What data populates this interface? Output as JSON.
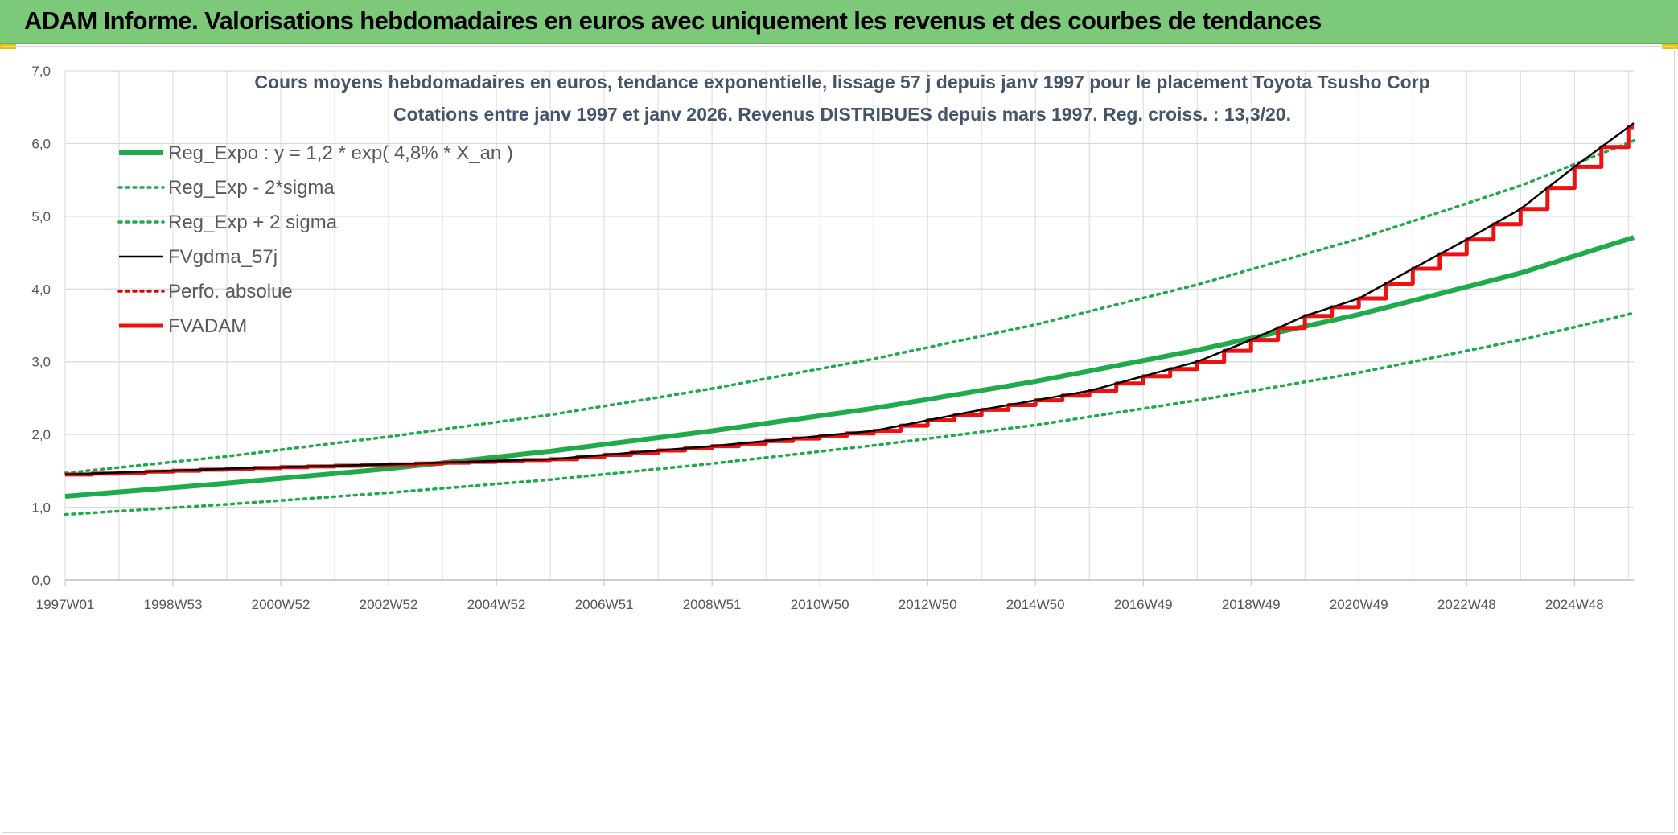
{
  "banner": {
    "title": "ADAM Informe. Valorisations hebdomadaires en euros avec uniquement les revenus et des courbes de tendances"
  },
  "colors": {
    "banner_bg": "#7dc97a",
    "reg_expo": "#1faa4b",
    "fvgdma": "#000000",
    "perfo": "#e00000",
    "fvadam": "#ee1111",
    "grid": "#d9d9d9",
    "title_text": "#44546a"
  },
  "chart_data": {
    "type": "line",
    "title": "Cours moyens hebdomadaires en euros, tendance exponentielle, lissage 57 j depuis janv 1997 pour le placement Toyota Tsusho Corp",
    "subtitle": "Cotations entre janv 1997 et janv 2026. Revenus DISTRIBUES depuis mars 1997. Reg. croiss. : 13,3/20.",
    "xlabel": "",
    "ylabel": "",
    "ylim": [
      0,
      7
    ],
    "grid": true,
    "legend_position": "top-left",
    "x_ticks": [
      "1997W01",
      "1998W53",
      "2000W52",
      "2002W52",
      "2004W52",
      "2006W51",
      "2008W51",
      "2010W50",
      "2012W50",
      "2014W50",
      "2016W49",
      "2018W49",
      "2020W49",
      "2022W48",
      "2024W48"
    ],
    "y_ticks": [
      "0,0",
      "1,0",
      "2,0",
      "3,0",
      "4,0",
      "5,0",
      "6,0",
      "7,0"
    ],
    "x_range_years": [
      1997.0,
      2026.1
    ],
    "series": [
      {
        "name": "Reg_Expo : y = 1,2 * exp( 4,8% *  X_an )",
        "style": "solid-thick",
        "color": "#1faa4b",
        "x_years": [
          1997,
          2000,
          2003,
          2006,
          2009,
          2012,
          2015,
          2018,
          2021,
          2024,
          2026.1
        ],
        "values": [
          1.15,
          1.33,
          1.53,
          1.77,
          2.05,
          2.36,
          2.73,
          3.16,
          3.65,
          4.22,
          4.71
        ]
      },
      {
        "name": "Reg_Exp - 2*sigma",
        "style": "dotted",
        "color": "#1faa4b",
        "x_years": [
          1997,
          2000,
          2003,
          2006,
          2009,
          2012,
          2015,
          2018,
          2021,
          2024,
          2026.1
        ],
        "values": [
          0.9,
          1.04,
          1.2,
          1.38,
          1.6,
          1.85,
          2.13,
          2.47,
          2.85,
          3.3,
          3.67
        ]
      },
      {
        "name": "Reg_Exp + 2 sigma",
        "style": "dotted",
        "color": "#1faa4b",
        "x_years": [
          1997,
          2000,
          2003,
          2006,
          2009,
          2012,
          2015,
          2018,
          2021,
          2024,
          2026.1
        ],
        "values": [
          1.47,
          1.7,
          1.97,
          2.27,
          2.63,
          3.04,
          3.51,
          4.06,
          4.69,
          5.42,
          6.04
        ]
      },
      {
        "name": "FVgdma_57j",
        "style": "solid",
        "color": "#000000",
        "x_years": [
          1997,
          2000,
          2003,
          2006,
          2009,
          2012,
          2014,
          2016,
          2018,
          2019,
          2020,
          2021,
          2022,
          2023,
          2024,
          2025,
          2026.1
        ],
        "values": [
          1.45,
          1.53,
          1.59,
          1.66,
          1.84,
          2.05,
          2.34,
          2.6,
          3.0,
          3.3,
          3.63,
          3.87,
          4.28,
          4.68,
          5.1,
          5.68,
          6.28
        ]
      },
      {
        "name": "Perfo. absolue",
        "style": "dotted",
        "color": "#e00000",
        "x_years": [],
        "values": []
      },
      {
        "name": "FVADAM",
        "style": "stepped-thick",
        "color": "#ee1111",
        "x_years": [
          1997,
          2000,
          2003,
          2006,
          2009,
          2012,
          2014,
          2016,
          2018,
          2019,
          2020,
          2021,
          2022,
          2023,
          2024,
          2025,
          2026.1
        ],
        "values": [
          1.45,
          1.53,
          1.59,
          1.66,
          1.84,
          2.05,
          2.34,
          2.6,
          3.0,
          3.3,
          3.63,
          3.87,
          4.28,
          4.68,
          5.1,
          5.68,
          6.28
        ]
      }
    ]
  }
}
